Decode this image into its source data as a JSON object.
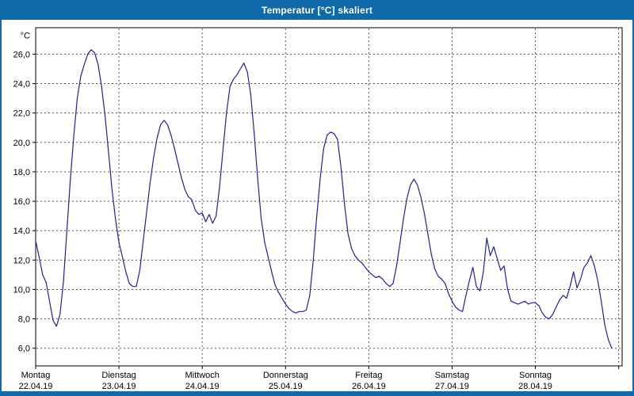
{
  "window": {
    "title": "Temperatur [°C] skaliert"
  },
  "chart_data": {
    "type": "line",
    "title": "Temperatur [°C] skaliert",
    "y_axis_unit": "°C",
    "x_unit": "hours",
    "sample_interval_hours": 1,
    "xlim": [
      0,
      169
    ],
    "ylim": [
      4.8,
      27.8
    ],
    "grid": true,
    "y_ticks": [
      {
        "value": 6,
        "label": "6,0"
      },
      {
        "value": 8,
        "label": "8,0"
      },
      {
        "value": 10,
        "label": "10,0"
      },
      {
        "value": 12,
        "label": "12,0"
      },
      {
        "value": 14,
        "label": "14,0"
      },
      {
        "value": 16,
        "label": "16,0"
      },
      {
        "value": 18,
        "label": "18,0"
      },
      {
        "value": 20,
        "label": "20,0"
      },
      {
        "value": 22,
        "label": "22,0"
      },
      {
        "value": 24,
        "label": "24,0"
      },
      {
        "value": 26,
        "label": "26,0"
      }
    ],
    "x_ticks": [
      {
        "hour": 0,
        "day": "Montag",
        "date": "22.04.19"
      },
      {
        "hour": 24,
        "day": "Dienstag",
        "date": "23.04.19"
      },
      {
        "hour": 48,
        "day": "Mittwoch",
        "date": "24.04.19"
      },
      {
        "hour": 72,
        "day": "Donnerstag",
        "date": "25.04.19"
      },
      {
        "hour": 96,
        "day": "Freitag",
        "date": "26.04.19"
      },
      {
        "hour": 120,
        "day": "Samstag",
        "date": "27.04.19"
      },
      {
        "hour": 144,
        "day": "Sonntag",
        "date": "28.04.19"
      }
    ],
    "series": [
      {
        "name": "Temperatur",
        "color": "#2020a0",
        "start_hour": 0,
        "values": [
          13.3,
          12.2,
          11.0,
          10.5,
          9.2,
          7.9,
          7.5,
          8.3,
          10.5,
          14.0,
          17.5,
          20.5,
          23.0,
          24.5,
          25.3,
          26.0,
          26.3,
          26.1,
          25.3,
          23.8,
          21.8,
          19.3,
          16.8,
          14.8,
          13.2,
          12.2,
          11.2,
          10.4,
          10.2,
          10.2,
          11.3,
          13.3,
          15.3,
          17.3,
          19.0,
          20.3,
          21.2,
          21.5,
          21.2,
          20.5,
          19.6,
          18.6,
          17.6,
          16.8,
          16.3,
          16.1,
          15.4,
          15.1,
          15.2,
          14.6,
          15.1,
          14.5,
          15.0,
          17.0,
          19.5,
          22.0,
          23.8,
          24.3,
          24.6,
          25.0,
          25.4,
          24.8,
          23.2,
          20.5,
          17.5,
          14.8,
          13.2,
          12.2,
          11.2,
          10.3,
          9.8,
          9.4,
          9.0,
          8.7,
          8.5,
          8.4,
          8.5,
          8.5,
          8.6,
          9.6,
          12.0,
          15.0,
          17.6,
          19.6,
          20.5,
          20.7,
          20.6,
          20.2,
          18.3,
          15.8,
          13.8,
          12.8,
          12.3,
          12.0,
          11.8,
          11.5,
          11.2,
          11.0,
          10.8,
          10.9,
          10.7,
          10.4,
          10.2,
          10.4,
          11.6,
          13.2,
          14.8,
          16.2,
          17.1,
          17.5,
          17.1,
          16.3,
          15.2,
          13.8,
          12.4,
          11.4,
          10.9,
          10.7,
          10.4,
          9.7,
          9.2,
          8.8,
          8.6,
          8.5,
          9.6,
          10.6,
          11.5,
          10.2,
          9.9,
          11.2,
          13.5,
          12.3,
          12.9,
          12.1,
          11.3,
          11.6,
          10.0,
          9.2,
          9.1,
          9.0,
          9.1,
          9.2,
          9.0,
          9.1,
          9.1,
          8.9,
          8.4,
          8.1,
          8.0,
          8.3,
          8.8,
          9.3,
          9.6,
          9.4,
          10.2,
          11.2,
          10.1,
          10.7,
          11.5,
          11.8,
          12.3,
          11.6,
          10.6,
          9.2,
          7.6,
          6.6,
          6.0
        ]
      }
    ],
    "colors": {
      "titlebar": "#1069a9",
      "grid": "#555555",
      "plot_border": "#000000",
      "background": "#ffffff",
      "line": "#2020a0"
    }
  }
}
